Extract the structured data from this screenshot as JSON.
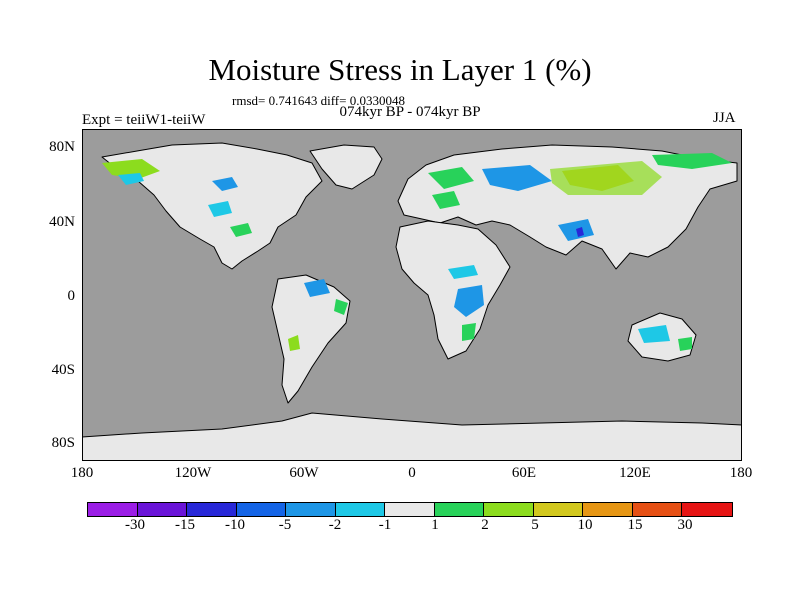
{
  "title": "Moisture Stress in Layer 1 (%)",
  "stats": "rmsd= 0.741643 diff= 0.0330048",
  "period": "074kyr BP - 074kyr BP",
  "experiment": "Expt = teiiW1-teiiW",
  "season": "JJA",
  "y_ticks": [
    "80N",
    "40N",
    "0",
    "40S",
    "80S"
  ],
  "x_ticks": [
    "180",
    "120W",
    "60W",
    "0",
    "60E",
    "120E",
    "180"
  ],
  "colors": {
    "ocean": "#9c9c9c",
    "land_neutral": "#e8e8e8",
    "coast": "#000000"
  },
  "colorbar": {
    "labels": [
      "-30",
      "-15",
      "-10",
      "-5",
      "-2",
      "-1",
      "1",
      "2",
      "5",
      "10",
      "15",
      "30"
    ],
    "colors": [
      "#9b1ee6",
      "#6a14d8",
      "#2828d8",
      "#1464e6",
      "#1e96e6",
      "#1ec8e6",
      "#e8e8e8",
      "#28d25a",
      "#8cdc1e",
      "#d2c81e",
      "#e69614",
      "#e65014",
      "#e61414"
    ]
  }
}
